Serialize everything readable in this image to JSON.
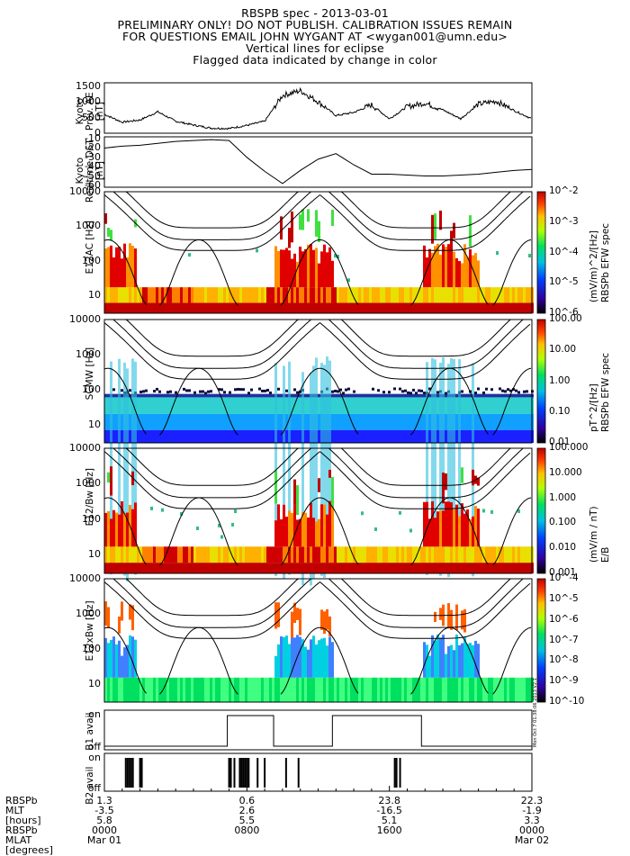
{
  "header": {
    "line1": "RBSPB spec - 2013-03-01",
    "line2": "PRELIMINARY ONLY! DO NOT PUBLISH. CALIBRATION ISSUES REMAIN",
    "line3": "FOR QUESTIONS EMAIL JOHN WYGANT AT <wygan001@umn.edu>",
    "line4": "Vertical lines for eclipse",
    "line5": "Flagged data indicated by change in color"
  },
  "side_stamp": "Mon Oct  7 01:38:06 2013 V2.1",
  "colors": {
    "plot_border": "#000000",
    "spec_low": "#1a0080",
    "spec_mid": "#18d0c0",
    "spec_high": "#c80000"
  },
  "chart_data": [
    {
      "type": "line",
      "id": "ae",
      "ylabel_lines": [
        "Kyoto",
        "Prov. AE",
        "[nT]"
      ],
      "yticks": [
        "1500",
        "1000",
        "500",
        "0"
      ],
      "ylim": [
        0,
        1600
      ],
      "x": [
        0,
        1,
        2,
        3,
        4,
        5,
        6,
        7,
        8,
        9,
        10,
        11,
        12,
        13,
        14,
        15,
        16,
        17,
        18,
        19,
        20,
        21,
        22,
        23,
        24
      ],
      "values": [
        600,
        350,
        420,
        680,
        380,
        260,
        160,
        150,
        250,
        380,
        1200,
        1350,
        1000,
        560,
        660,
        900,
        460,
        840,
        960,
        740,
        460,
        920,
        1020,
        720,
        460
      ]
    },
    {
      "type": "line",
      "id": "dst",
      "ylabel_lines": [
        "Kyoto",
        "Realtime DST",
        "[nT]"
      ],
      "yticks": [
        "-10",
        "-20",
        "-30",
        "-40",
        "-50",
        "-60"
      ],
      "ylim": [
        -62,
        -8
      ],
      "x": [
        0,
        1,
        2,
        3,
        4,
        5,
        6,
        7,
        8,
        9,
        10,
        11,
        12,
        13,
        14,
        15,
        16,
        17,
        18,
        19,
        20,
        21,
        22,
        23,
        24
      ],
      "values": [
        -20,
        -18,
        -17,
        -15,
        -13,
        -12,
        -11,
        -12,
        -30,
        -45,
        -58,
        -44,
        -32,
        -26,
        -38,
        -48,
        -48,
        -49,
        -50,
        -50,
        -49,
        -48,
        -46,
        -44,
        -43
      ]
    },
    {
      "type": "heatmap",
      "id": "e12ac",
      "ylabel_lines": [
        "E12AC",
        "[Hz]"
      ],
      "yticks": [
        "10000",
        "1000",
        "100",
        "10"
      ],
      "yscale": "log",
      "ylim": [
        3,
        10000
      ],
      "colorbar": {
        "ticks": [
          "10^-2",
          "10^-3",
          "10^-4",
          "10^-5",
          "10^-6"
        ],
        "label_lines": [
          "(mV/m)^2/[Hz]",
          "RBSPb EFW spec"
        ]
      }
    },
    {
      "type": "heatmap",
      "id": "scmw",
      "ylabel_lines": [
        "SCMW",
        "[Hz]"
      ],
      "yticks": [
        "10000",
        "1000",
        "100",
        "10"
      ],
      "yscale": "log",
      "ylim": [
        3,
        10000
      ],
      "colorbar": {
        "ticks": [
          "100.00",
          "10.00",
          "1.00",
          "0.10",
          "0.01"
        ],
        "label_lines": [
          "pT^2/[Hz]",
          "RBSPb EFW spec"
        ]
      }
    },
    {
      "type": "heatmap",
      "id": "e12_bw",
      "ylabel_lines": [
        "E12/Bw",
        "[Hz]"
      ],
      "yticks": [
        "10000",
        "1000",
        "100",
        "10"
      ],
      "yscale": "log",
      "ylim": [
        3,
        10000
      ],
      "colorbar": {
        "ticks": [
          "100.000",
          "10.000",
          "1.000",
          "0.100",
          "0.010",
          "0.001"
        ],
        "label_lines": [
          "(mV/m / nT)",
          "E/B"
        ]
      }
    },
    {
      "type": "heatmap",
      "id": "e12xbw",
      "ylabel_lines": [
        "E12xBw",
        "[Hz]"
      ],
      "yticks": [
        "10000",
        "1000",
        "100",
        "10"
      ],
      "yscale": "log",
      "ylim": [
        3,
        10000
      ],
      "colorbar": {
        "ticks": [
          "10^-4",
          "10^-5",
          "10^-6",
          "10^-7",
          "10^-8",
          "10^-9",
          "10^-10"
        ],
        "label_lines": []
      }
    },
    {
      "type": "line",
      "id": "b1",
      "ylabel_lines": [
        "B1",
        "avail"
      ],
      "yticks": [
        "on",
        "off"
      ],
      "x": [
        0,
        6.9,
        6.9,
        9.5,
        9.5,
        12.8,
        12.8,
        17.8,
        17.8,
        24
      ],
      "values": [
        0,
        0,
        1,
        1,
        0,
        0,
        1,
        1,
        0,
        0
      ]
    },
    {
      "type": "line",
      "id": "b2",
      "ylabel_lines": [
        "B2",
        "avail"
      ],
      "yticks": [
        "on",
        "off"
      ],
      "pulses_x": [
        1.2,
        1.3,
        1.4,
        1.5,
        1.6,
        2.0,
        2.1,
        7.0,
        7.1,
        7.3,
        7.6,
        7.7,
        7.8,
        7.9,
        8.0,
        8.1,
        8.6,
        9.0,
        10.2,
        10.9,
        16.3,
        16.4,
        16.6
      ]
    }
  ],
  "footer": {
    "labels": [
      "RBSPb",
      "MLT",
      "[hours]",
      "RBSPb",
      "MLAT",
      "[degrees]"
    ],
    "columns": [
      {
        "mlt": "1.3",
        "mlat": "-3.5",
        "v3": "5.8",
        "time": "0000",
        "date": "Mar 01"
      },
      {
        "mlt": "0.6",
        "mlat": "2.6",
        "v3": "5.5",
        "time": "0800",
        "date": ""
      },
      {
        "mlt": "23.8",
        "mlat": "-16.5",
        "v3": "5.1",
        "time": "1600",
        "date": ""
      },
      {
        "mlt": "22.3",
        "mlat": "-1.9",
        "v3": "3.3",
        "time": "0000",
        "date": "Mar 02"
      }
    ]
  }
}
